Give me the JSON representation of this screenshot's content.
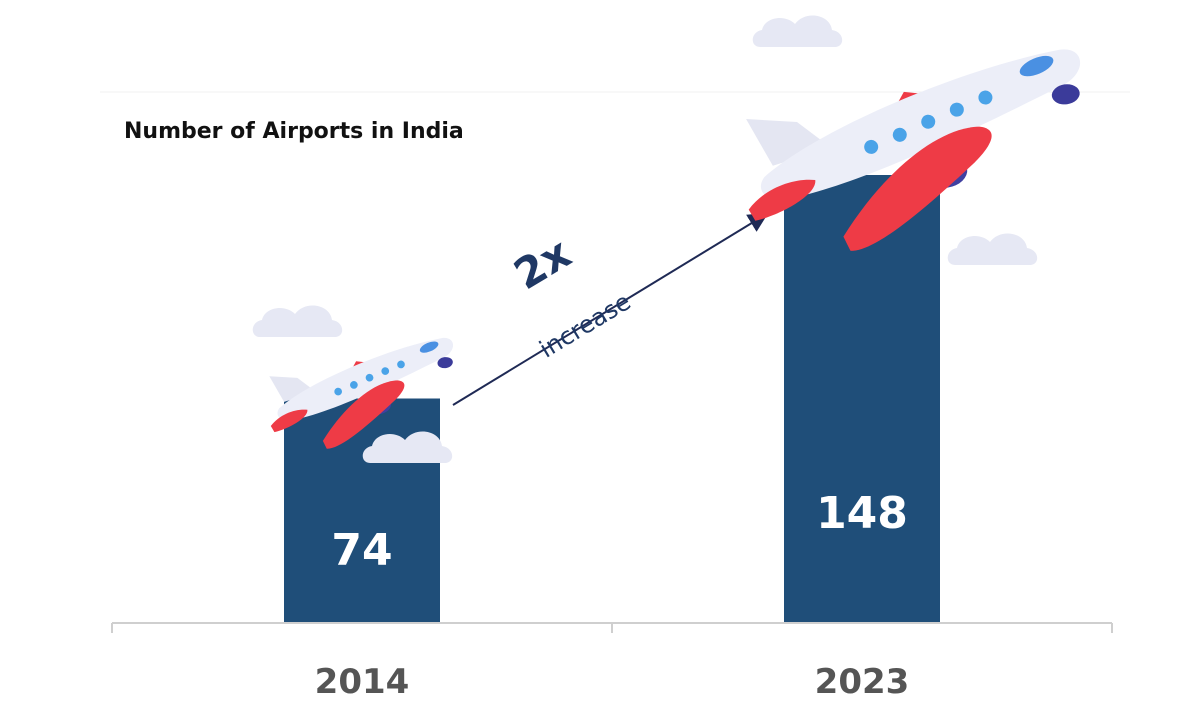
{
  "chart_data": {
    "type": "bar",
    "title": "Number of Airports in India",
    "categories": [
      "2014",
      "2023"
    ],
    "values": [
      74,
      148
    ],
    "data_labels": [
      "74",
      "148"
    ],
    "xlabel": "",
    "ylabel": "",
    "ylim": [
      0,
      160
    ],
    "grid": false,
    "legend": "none",
    "annotation": {
      "multiplier": "2x",
      "text": "increase"
    },
    "colors": {
      "bar": "#1f4e79",
      "axis": "#cfcfcf",
      "arrow": "#1f2a55",
      "plane_body": "#eceef8",
      "plane_wing": "#ee3b46",
      "plane_window": "#4aa3e8",
      "cloud": "#e6e8f4"
    }
  }
}
